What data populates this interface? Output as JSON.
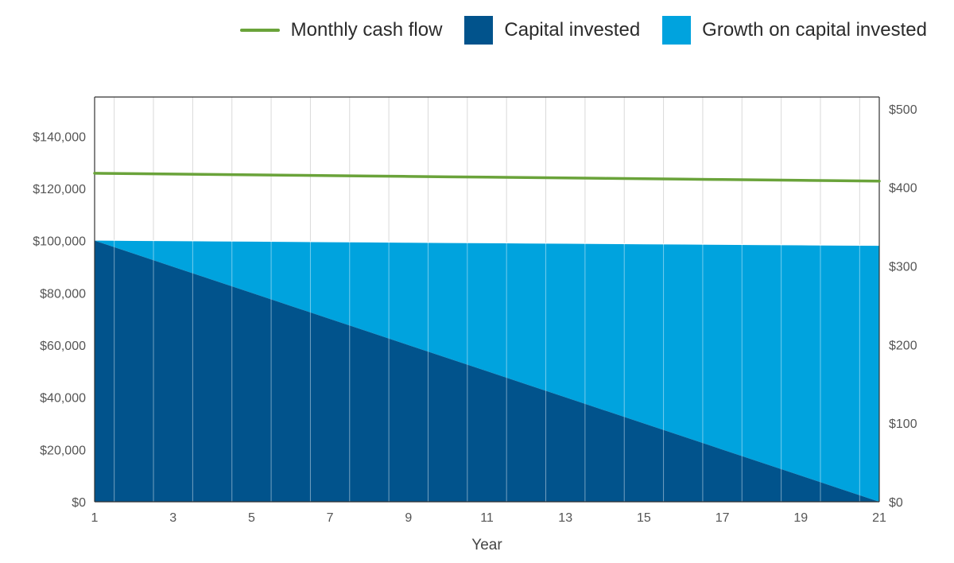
{
  "legend": {
    "cash_flow": "Monthly cash flow",
    "capital": "Capital invested",
    "growth": "Growth on capital invested"
  },
  "colors": {
    "cash_flow": "#6aa33a",
    "capital": "#01538c",
    "growth": "#00a3de",
    "grid": "#d9d9d9",
    "axis": "#333333"
  },
  "chart_data": {
    "type": "area",
    "xlabel": "Year",
    "x": [
      1,
      2,
      3,
      4,
      5,
      6,
      7,
      8,
      9,
      10,
      11,
      12,
      13,
      14,
      15,
      16,
      17,
      18,
      19,
      20,
      21
    ],
    "x_tick_labels": [
      "1",
      "3",
      "5",
      "7",
      "9",
      "11",
      "13",
      "15",
      "17",
      "19",
      "21"
    ],
    "y_left": {
      "range": [
        0,
        155000
      ],
      "ticks": [
        0,
        20000,
        40000,
        60000,
        80000,
        100000,
        120000,
        140000
      ],
      "tick_labels": [
        "$0",
        "$20,000",
        "$40,000",
        "$60,000",
        "$80,000",
        "$100,000",
        "$120,000",
        "$140,000"
      ]
    },
    "y_right": {
      "range": [
        0,
        515
      ],
      "ticks": [
        0,
        100,
        200,
        300,
        400,
        500
      ],
      "tick_labels": [
        "$0",
        "$100",
        "$200",
        "$300",
        "$400",
        "$500"
      ]
    },
    "grid": true,
    "legend_position": "top-right",
    "series": [
      {
        "name": "Capital invested",
        "kind": "area",
        "axis": "left",
        "values": [
          100000,
          95000,
          90000,
          85000,
          80000,
          75000,
          70000,
          65000,
          60000,
          55000,
          50000,
          45000,
          40000,
          35000,
          30000,
          25000,
          20000,
          15000,
          10000,
          5000,
          0
        ]
      },
      {
        "name": "Growth on capital invested",
        "kind": "stacked-area",
        "axis": "left",
        "values": [
          0,
          4900,
          9800,
          14700,
          19600,
          24500,
          29400,
          34300,
          39200,
          44100,
          49000,
          53900,
          58800,
          63700,
          68600,
          73500,
          78400,
          83300,
          88200,
          93100,
          98000
        ]
      },
      {
        "name": "Monthly cash flow",
        "kind": "line",
        "axis": "right",
        "values": [
          418,
          417.5,
          417,
          416.5,
          416,
          415.5,
          415,
          414.5,
          414,
          413.5,
          413,
          412.5,
          412,
          411.5,
          411,
          410.5,
          410,
          409.5,
          409,
          408.5,
          408
        ]
      }
    ]
  }
}
